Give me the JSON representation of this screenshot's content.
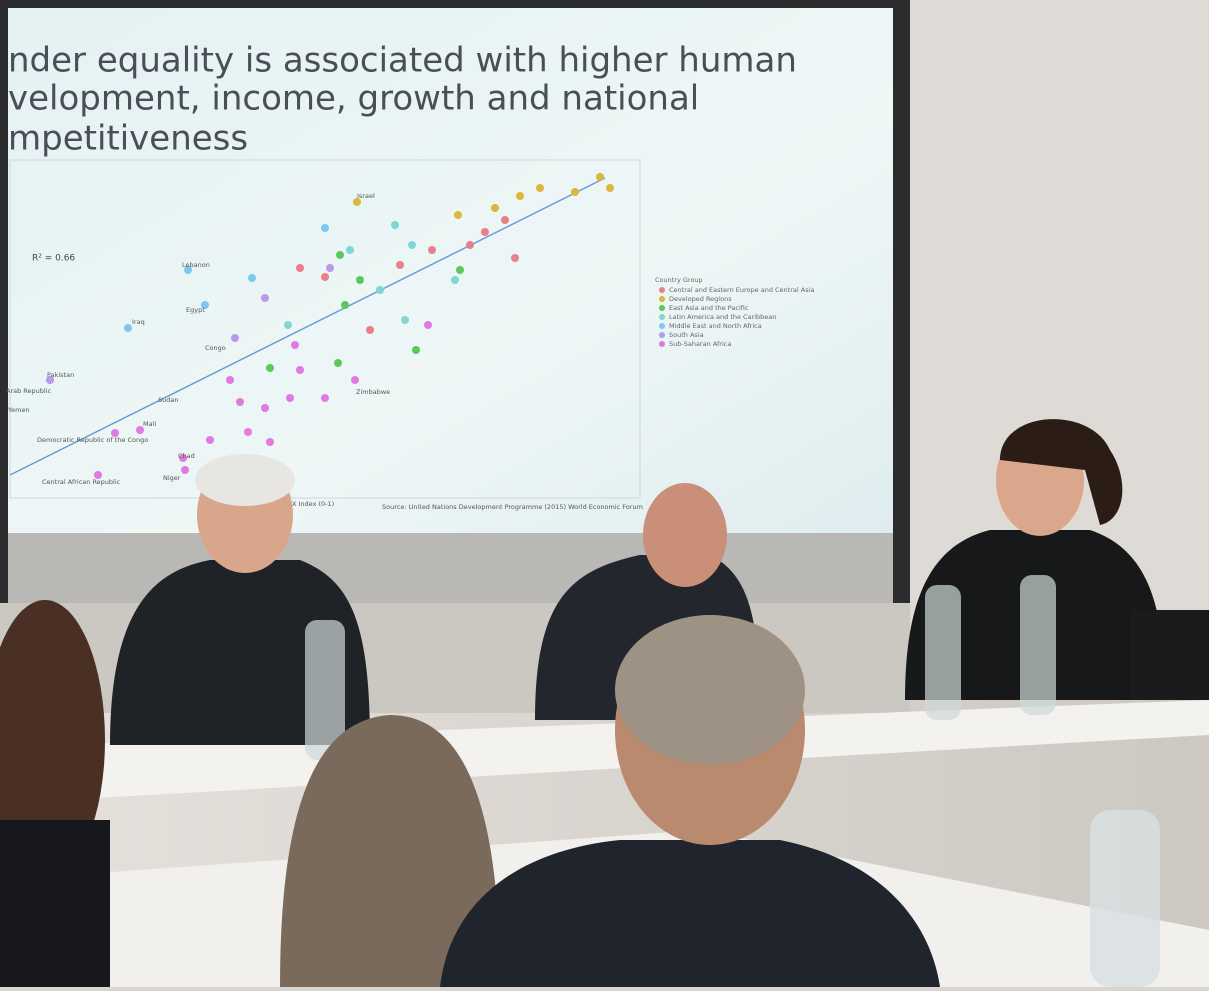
{
  "slide": {
    "title_lines": [
      "nder equality is associated with higher human",
      "velopment, income, growth and national",
      "mpetitiveness"
    ],
    "r_squared": "R² = 0.66",
    "country_labels": [
      "Israel",
      "Lebanon",
      "Egypt",
      "Iraq",
      "Congo",
      "Pakistan",
      "Arab Republic",
      "Yemen",
      "Sudan",
      "Mali",
      "Democratic Republic of the Congo",
      "Chad",
      "Central African Republic",
      "Niger",
      "Zimbabwe"
    ],
    "legend": {
      "title": "Country Group",
      "items": [
        "Central and Eastern Europe and Central Asia",
        "Developed Regions",
        "East Asia and the Pacific",
        "Latin America and the Caribbean",
        "Middle East and North Africa",
        "South Asia",
        "Sub-Saharan Africa"
      ]
    },
    "x_axis_label": "X Index (0-1)",
    "source": "Source: United Nations Development Programme (2015) World Economic Forum"
  }
}
